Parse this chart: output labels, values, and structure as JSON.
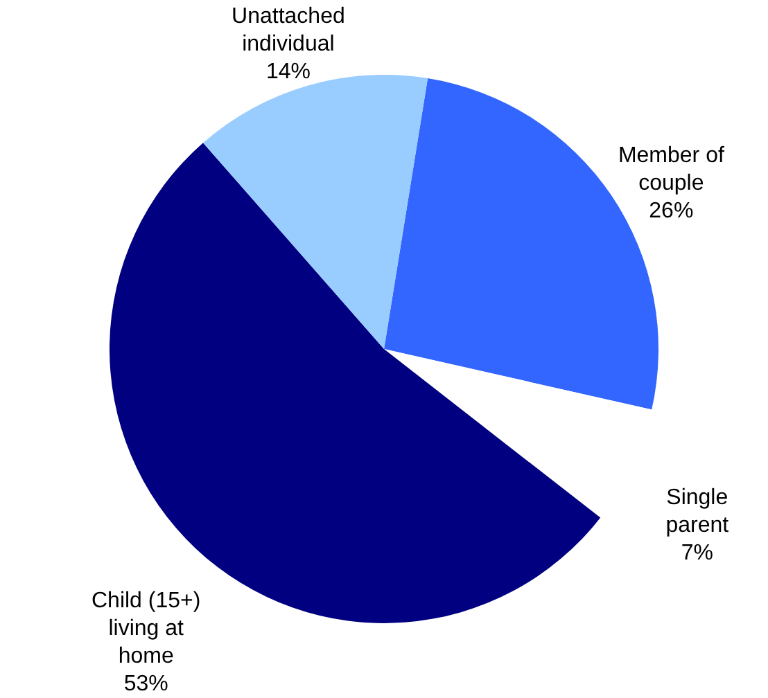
{
  "chart_data": {
    "type": "pie",
    "categories": [
      "Member of couple",
      "Single parent",
      "Child (15+) living at home",
      "Unattached individual"
    ],
    "values": [
      26,
      7,
      53,
      14
    ],
    "value_labels": [
      "26%",
      "7%",
      "53%",
      "14%"
    ],
    "colors": [
      "#3366ff",
      "#ffffff",
      "#000080",
      "#99ccff"
    ],
    "legend": false
  }
}
